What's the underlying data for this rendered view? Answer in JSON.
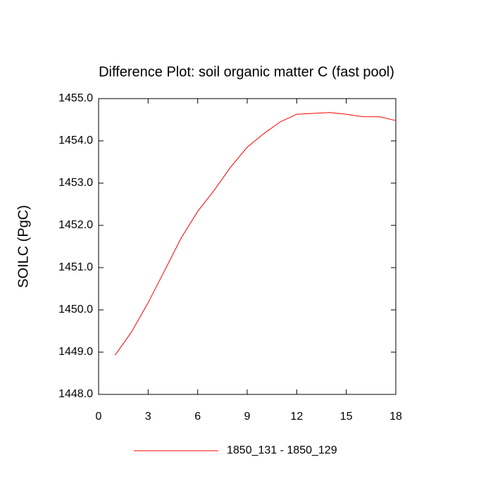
{
  "chart_data": {
    "type": "line",
    "title": "Difference Plot: soil organic matter C (fast pool)",
    "y_label": "SOILC  (PgC)",
    "x": [
      1,
      2,
      3,
      4,
      5,
      6,
      7,
      8,
      9,
      10,
      11,
      12,
      13,
      14,
      15,
      16,
      17,
      18
    ],
    "series": [
      {
        "name": "1850_131 - 1850_129",
        "color": "#ff0000",
        "values": [
          1448.93,
          1449.48,
          1450.17,
          1450.93,
          1451.7,
          1452.33,
          1452.83,
          1453.38,
          1453.85,
          1454.17,
          1454.45,
          1454.63,
          1454.65,
          1454.67,
          1454.63,
          1454.57,
          1454.57,
          1454.48
        ]
      }
    ],
    "xlim": [
      0,
      18
    ],
    "xticks": [
      0,
      3,
      6,
      9,
      12,
      15,
      18
    ],
    "ylim": [
      1448,
      1455
    ],
    "yticks": [
      {
        "value": 1448,
        "label": "1448.0"
      },
      {
        "value": 1449,
        "label": "1449.0"
      },
      {
        "value": 1450,
        "label": "1450.0"
      },
      {
        "value": 1451,
        "label": "1451.0"
      },
      {
        "value": 1452,
        "label": "1452.0"
      },
      {
        "value": 1453,
        "label": "1453.0"
      },
      {
        "value": 1454,
        "label": "1454.0"
      },
      {
        "value": 1455,
        "label": "1455.0"
      }
    ],
    "grid": false
  }
}
